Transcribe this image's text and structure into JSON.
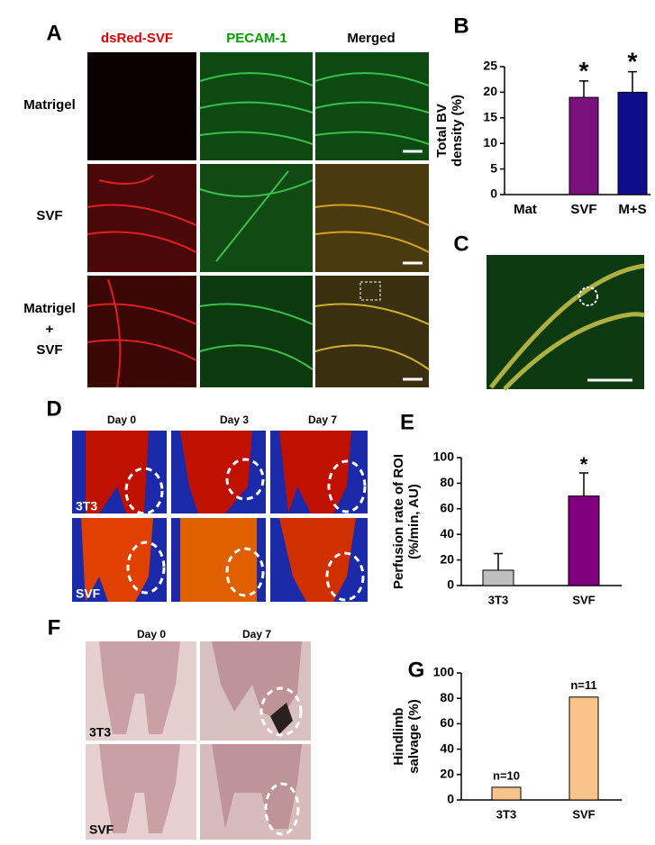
{
  "panel_labels": [
    "A",
    "B",
    "C",
    "D",
    "E",
    "F",
    "G"
  ],
  "panel_a": {
    "columns": [
      "dsRed-SVF",
      "PECAM-1",
      "Merged"
    ],
    "rows": [
      [
        "Matrigel"
      ],
      [
        "SVF"
      ],
      [
        "Matrigel",
        "+",
        "SVF"
      ]
    ]
  },
  "panel_d": {
    "columns": [
      "Day 0",
      "Day 3",
      "Day 7"
    ],
    "rows": [
      "3T3",
      "SVF"
    ]
  },
  "panel_f": {
    "columns": [
      "Day 0",
      "Day 7"
    ],
    "rows": [
      "3T3",
      "SVF"
    ]
  },
  "chart_data": [
    {
      "type": "bar",
      "ylabel": [
        "Total BV",
        "density (%)"
      ],
      "categories": [
        "Mat",
        "SVF",
        "M+S"
      ],
      "values": [
        0,
        19,
        20
      ],
      "errors": [
        0,
        3.2,
        4
      ],
      "colors": [
        "#7f7f7f",
        "#7b117d",
        "#0c0c8c"
      ],
      "ylim": [
        0,
        25
      ],
      "yticks": [
        0,
        5,
        10,
        15,
        20,
        25
      ],
      "annotations": [
        {
          "category": "SVF",
          "text": "*"
        },
        {
          "category": "M+S",
          "text": "*"
        }
      ]
    },
    {
      "type": "bar",
      "ylabel": [
        "Perfusion rate of ROI",
        "(%/min, AU)"
      ],
      "categories": [
        "3T3",
        "SVF"
      ],
      "values": [
        12,
        70
      ],
      "errors": [
        13,
        18
      ],
      "colors": [
        "#bfbfbf",
        "#800080"
      ],
      "ylim": [
        0,
        100
      ],
      "yticks": [
        0,
        20,
        40,
        60,
        80,
        100
      ],
      "annotations": [
        {
          "category": "SVF",
          "text": "*"
        }
      ]
    },
    {
      "type": "bar",
      "ylabel": [
        "Hindlimb",
        "salvage (%)"
      ],
      "categories": [
        "3T3",
        "SVF"
      ],
      "values": [
        10,
        81
      ],
      "colors": [
        "#f8c48c",
        "#f8c48c"
      ],
      "ylim": [
        0,
        100
      ],
      "yticks": [
        0,
        20,
        40,
        60,
        80,
        100
      ],
      "annotations": [
        {
          "category": "3T3",
          "text": "n=10"
        },
        {
          "category": "SVF",
          "text": "n=11"
        }
      ]
    }
  ]
}
